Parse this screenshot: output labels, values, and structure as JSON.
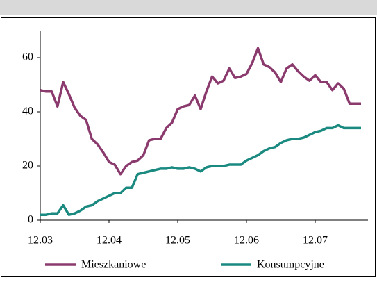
{
  "chart_data": {
    "type": "line",
    "categories": [
      "12.03",
      null,
      null,
      null,
      null,
      null,
      null,
      null,
      null,
      null,
      null,
      null,
      "12.04",
      null,
      null,
      null,
      null,
      null,
      null,
      null,
      null,
      null,
      null,
      null,
      "12.05",
      null,
      null,
      null,
      null,
      null,
      null,
      null,
      null,
      null,
      null,
      null,
      "12.06",
      null,
      null,
      null,
      null,
      null,
      null,
      null,
      null,
      null,
      null,
      null,
      "12.07",
      null,
      null,
      null,
      null,
      null,
      null,
      null,
      null
    ],
    "series": [
      {
        "name": "Mieszkaniowe",
        "color": "#8b3a6e",
        "values": [
          48,
          47.5,
          47.5,
          42,
          51,
          46.5,
          41.5,
          38.5,
          37,
          30,
          28,
          25,
          21.5,
          20.5,
          17,
          20,
          21.5,
          22,
          24,
          29.5,
          30,
          30,
          34,
          36,
          41,
          42,
          42.5,
          46,
          41,
          47.5,
          53,
          50.5,
          51.5,
          56,
          52.5,
          53,
          54,
          58,
          63.5,
          57.5,
          56.5,
          54.5,
          51,
          56,
          57.5,
          55,
          53,
          51.5,
          53.5,
          51,
          51,
          48,
          50.5,
          48.5,
          43,
          43,
          43
        ]
      },
      {
        "name": "Konsumpcyjne",
        "color": "#1a8a80",
        "values": [
          2,
          2,
          2.5,
          2.5,
          5.5,
          2,
          2.5,
          3.5,
          5,
          5.5,
          7,
          8,
          9,
          10,
          10,
          12,
          12,
          17,
          17.5,
          18,
          18.5,
          19,
          19,
          19.5,
          19,
          19,
          19.5,
          19,
          18,
          19.5,
          20,
          20,
          20,
          20.5,
          20.5,
          20.5,
          22,
          23,
          24,
          25.5,
          26.5,
          27,
          28.5,
          29.5,
          30,
          30,
          30.5,
          31.5,
          32.5,
          33,
          34,
          34,
          35,
          34,
          34,
          34,
          34
        ]
      }
    ],
    "ylim": [
      0,
      70
    ],
    "yticks": [
      0,
      20,
      40,
      60
    ],
    "grid": false
  }
}
